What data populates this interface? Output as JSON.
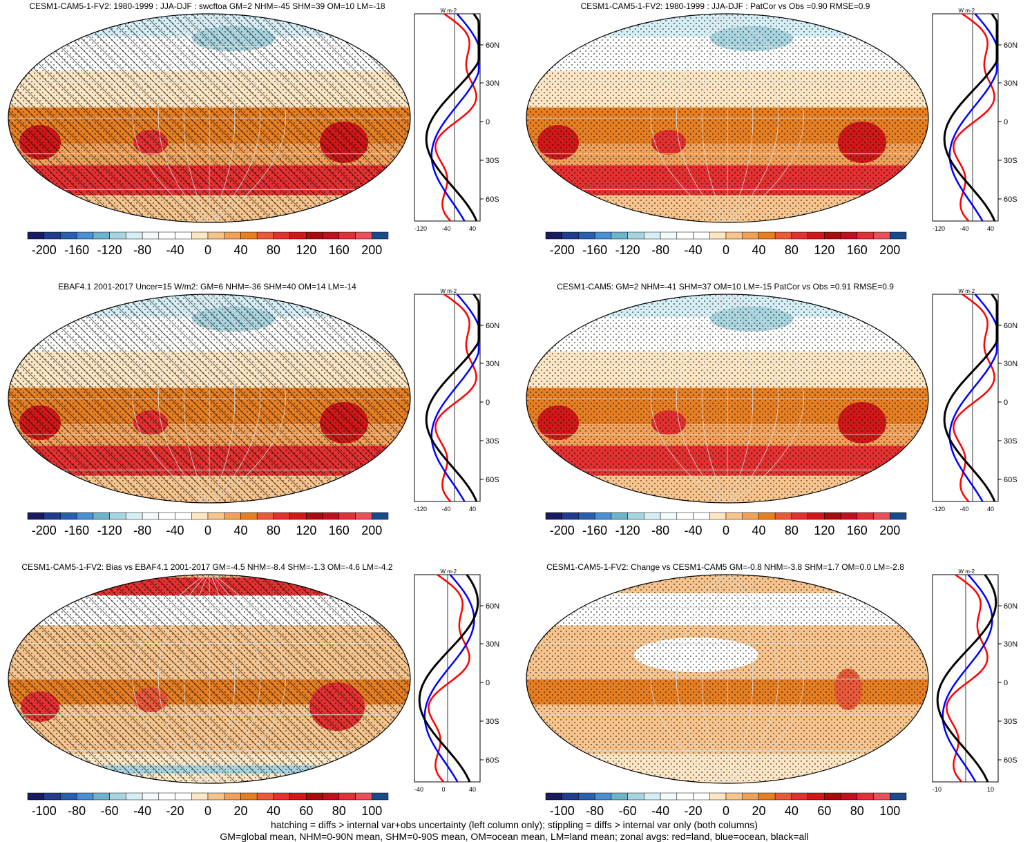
{
  "panels": [
    {
      "title": "CESM1-CAM5-1-FV2: 1980-1999 : JJA-DJF : swcftoa GM=2 NHM=-45 SHM=39 OM=10 LM=-18",
      "hatched": true,
      "zonal_ticks": [
        "-120",
        "-40",
        "40"
      ],
      "lat_labels": [
        "60N",
        "30N",
        "0",
        "30S",
        "60S"
      ],
      "unit": "W m-2",
      "colorbar_labels": [
        "-200",
        "-160",
        "-120",
        "-80",
        "-40",
        "0",
        "40",
        "80",
        "120",
        "160",
        "200"
      ]
    },
    {
      "title": "CESM1-CAM5-1-FV2: 1980-1999 : JJA-DJF : PatCor vs Obs =0.90 RMSE=0.9",
      "hatched": false,
      "zonal_ticks": [
        "-120",
        "-40",
        "40"
      ],
      "lat_labels": [
        "60N",
        "30N",
        "0",
        "30S",
        "60S"
      ],
      "unit": "W m-2",
      "colorbar_labels": [
        "-200",
        "-160",
        "-120",
        "-80",
        "-40",
        "0",
        "40",
        "80",
        "120",
        "160",
        "200"
      ]
    },
    {
      "title": "EBAF4.1 2001-2017 Uncer=15 W/m2: GM=6 NHM=-36 SHM=40 OM=14 LM=-14",
      "hatched": true,
      "zonal_ticks": [
        "-120",
        "-40",
        "40"
      ],
      "lat_labels": [
        "60N",
        "30N",
        "0",
        "30S",
        "60S"
      ],
      "unit": "W m-2",
      "colorbar_labels": [
        "-200",
        "-160",
        "-120",
        "-80",
        "-40",
        "0",
        "40",
        "80",
        "120",
        "160",
        "200"
      ]
    },
    {
      "title": "CESM1-CAM5: GM=2 NHM=-41 SHM=37 OM=10 LM=-15 PatCor vs Obs =0.91 RMSE=0.9",
      "hatched": false,
      "zonal_ticks": [
        "-120",
        "-40",
        "40"
      ],
      "lat_labels": [
        "60N",
        "30N",
        "0",
        "30S",
        "60S"
      ],
      "unit": "W m-2",
      "colorbar_labels": [
        "-200",
        "-160",
        "-120",
        "-80",
        "-40",
        "0",
        "40",
        "80",
        "120",
        "160",
        "200"
      ]
    },
    {
      "title": "CESM1-CAM5-1-FV2: Bias vs EBAF4.1 2001-2017 GM=-4.5 NHM=-8.4 SHM=-1.3 OM=-4.6 LM=-4.2",
      "hatched": true,
      "zonal_ticks": [
        "-40",
        "0",
        "40"
      ],
      "lat_labels": [
        "60N",
        "30N",
        "0",
        "30S",
        "60S"
      ],
      "unit": "W m-2",
      "colorbar_labels": [
        "-100",
        "-80",
        "-60",
        "-40",
        "-20",
        "0",
        "20",
        "40",
        "60",
        "80",
        "100"
      ]
    },
    {
      "title": "CESM1-CAM5-1-FV2: Change vs CESM1-CAM5 GM=-0.8 NHM=-3.8 SHM=1.7 OM=0.0 LM=-2.8",
      "hatched": false,
      "zonal_ticks": [
        "-10",
        "10"
      ],
      "lat_labels": [
        "60N",
        "30N",
        "0",
        "30S",
        "60S"
      ],
      "unit": "W m-2",
      "colorbar_labels": [
        "-100",
        "-80",
        "-60",
        "-40",
        "-20",
        "0",
        "20",
        "40",
        "60",
        "80",
        "100"
      ]
    }
  ],
  "palette": [
    "#1a1a5e",
    "#1f3d8c",
    "#2a5fb0",
    "#4a8fd0",
    "#6fb3c9",
    "#a8d4e0",
    "#d6eef5",
    "#f2fafc",
    "#ffffff",
    "#ffffff",
    "#fde6c4",
    "#f6c48c",
    "#f0a058",
    "#e67e22",
    "#e85a3a",
    "#e33030",
    "#d01818",
    "#a80c0c",
    "#c01020",
    "#e0303a",
    "#e8505a",
    "#1a4a8a"
  ],
  "footer": {
    "line1": "hatching = diffs > internal var+obs uncertainty (left column only); stippling = diffs > internal var only (both columns)",
    "line2": "GM=global mean, NHM=0-90N mean, SHM=0-90S mean, OM=ocean mean, LM=land mean; zonal avgs: red=land, blue=ocean, black=all"
  },
  "legend_colors": {
    "land": "#ff0000",
    "ocean": "#0000ff",
    "all": "#000000"
  }
}
